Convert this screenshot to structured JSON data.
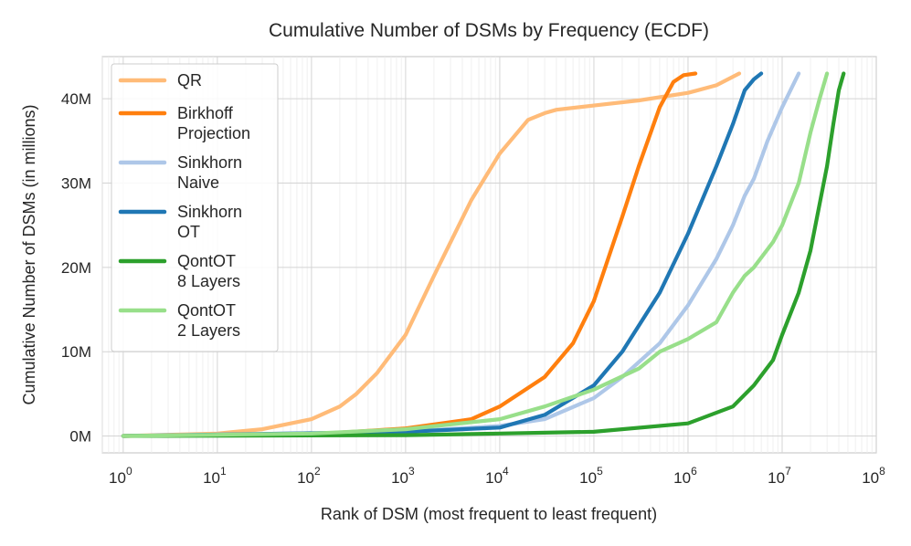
{
  "chart_data": {
    "type": "line",
    "title": "Cumulative Number of DSMs by Frequency (ECDF)",
    "xlabel": "Rank of DSM (most frequent to least frequent)",
    "ylabel": "Cumulative Number of DSMs (in millions)",
    "x_scale": "log",
    "xlim": [
      0.6,
      100000000
    ],
    "ylim": [
      -2,
      45
    ],
    "grid": true,
    "legend_position": "top-left",
    "x_ticks": [
      {
        "base": "10",
        "exp": "0",
        "value": 1
      },
      {
        "base": "10",
        "exp": "1",
        "value": 10
      },
      {
        "base": "10",
        "exp": "2",
        "value": 100
      },
      {
        "base": "10",
        "exp": "3",
        "value": 1000
      },
      {
        "base": "10",
        "exp": "4",
        "value": 10000
      },
      {
        "base": "10",
        "exp": "5",
        "value": 100000
      },
      {
        "base": "10",
        "exp": "6",
        "value": 1000000
      },
      {
        "base": "10",
        "exp": "7",
        "value": 10000000
      },
      {
        "base": "10",
        "exp": "8",
        "value": 100000000
      }
    ],
    "y_ticks": [
      {
        "label": "0M",
        "value": 0
      },
      {
        "label": "10M",
        "value": 10
      },
      {
        "label": "20M",
        "value": 20
      },
      {
        "label": "30M",
        "value": 30
      },
      {
        "label": "40M",
        "value": 40
      }
    ],
    "series": [
      {
        "name": "QR",
        "color": "#ffbb78",
        "x": [
          1,
          10,
          30,
          100,
          200,
          300,
          500,
          1000,
          2000,
          5000,
          10000,
          20000,
          30000,
          40000,
          100000,
          300000,
          1000000,
          2000000,
          3500000
        ],
        "y": [
          0,
          0.3,
          0.8,
          2.0,
          3.5,
          5.0,
          7.5,
          12.0,
          19.0,
          28.0,
          33.5,
          37.5,
          38.3,
          38.7,
          39.2,
          39.8,
          40.7,
          41.6,
          43.0
        ]
      },
      {
        "name": "Birkhoff\nProjection",
        "color": "#ff7f0e",
        "x": [
          1,
          100,
          1000,
          5000,
          10000,
          30000,
          60000,
          100000,
          200000,
          300000,
          500000,
          700000,
          900000,
          1200000
        ],
        "y": [
          0,
          0.2,
          0.9,
          2.0,
          3.5,
          7.0,
          11.0,
          16.0,
          26.0,
          32.0,
          39.0,
          42.0,
          42.8,
          43.0
        ]
      },
      {
        "name": "Sinkhorn\nNaive",
        "color": "#aec7e8",
        "x": [
          1,
          1000,
          10000,
          30000,
          100000,
          200000,
          500000,
          1000000,
          2000000,
          3000000,
          4000000,
          5000000,
          7000000,
          10000000,
          15000000
        ],
        "y": [
          0,
          0.5,
          1.2,
          2.0,
          4.5,
          7.0,
          11.0,
          15.5,
          21.0,
          25.0,
          28.5,
          30.5,
          35.0,
          39.0,
          43.0
        ]
      },
      {
        "name": "Sinkhorn\nOT",
        "color": "#1f77b4",
        "x": [
          1,
          1000,
          10000,
          30000,
          100000,
          200000,
          500000,
          1000000,
          2000000,
          3000000,
          4000000,
          5000000,
          6000000
        ],
        "y": [
          0,
          0.5,
          1.0,
          2.5,
          6.0,
          10.0,
          17.0,
          24.0,
          32.0,
          37.0,
          41.0,
          42.3,
          43.0
        ]
      },
      {
        "name": "QontOT\n8 Layers",
        "color": "#2ca02c",
        "x": [
          1,
          1000,
          10000,
          100000,
          1000000,
          3000000,
          5000000,
          8000000,
          10000000,
          15000000,
          20000000,
          30000000,
          35000000,
          40000000,
          45000000
        ],
        "y": [
          0,
          0.1,
          0.3,
          0.5,
          1.5,
          3.5,
          6.0,
          9.0,
          12.0,
          17.0,
          22.0,
          32.0,
          37.0,
          41.0,
          43.0
        ]
      },
      {
        "name": "QontOT\n2 Layers",
        "color": "#98df8a",
        "x": [
          1,
          100,
          1000,
          10000,
          30000,
          100000,
          300000,
          500000,
          1000000,
          2000000,
          3000000,
          4000000,
          5000000,
          8000000,
          10000000,
          15000000,
          20000000,
          25000000,
          30000000
        ],
        "y": [
          0,
          0.3,
          0.8,
          2.0,
          3.5,
          5.5,
          8.0,
          10.0,
          11.5,
          13.5,
          17.0,
          19.0,
          20.0,
          23.0,
          25.0,
          30.0,
          36.0,
          40.0,
          43.0
        ]
      }
    ]
  }
}
